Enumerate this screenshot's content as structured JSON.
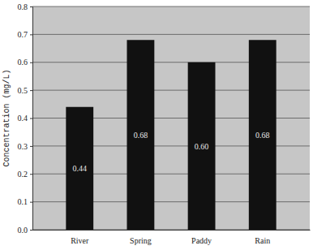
{
  "chart_data": {
    "type": "bar",
    "y_label": "Concentration (mg/L)",
    "categories": [
      "River",
      "Spring",
      "Paddy",
      "Rain"
    ],
    "values": [
      0.44,
      0.68,
      0.6,
      0.68
    ],
    "value_labels": [
      "0.44",
      "0.68",
      "0.60",
      "0.68"
    ],
    "data_labels": true,
    "color": "#111111",
    "ylim": [
      0,
      0.8
    ],
    "yticks": [
      {
        "value": 0,
        "label": "0.0"
      },
      0.1,
      0.2,
      0.3,
      0.4,
      0.5,
      0.6,
      0.7,
      0.8
    ],
    "grid": true
  }
}
